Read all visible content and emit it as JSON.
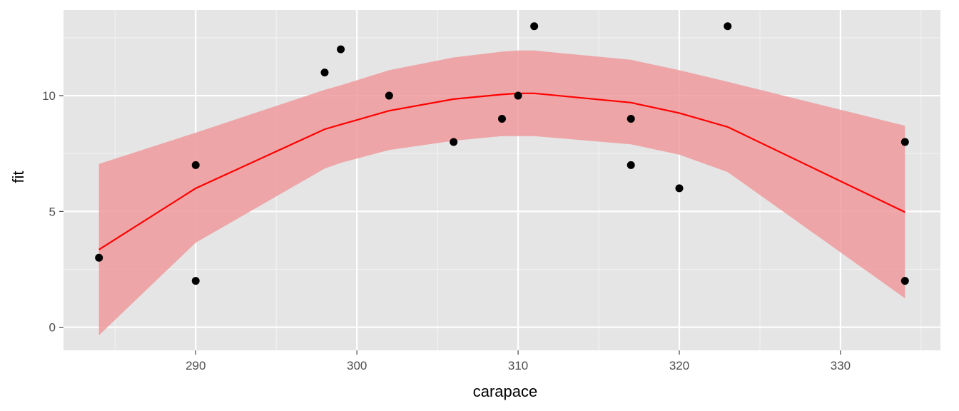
{
  "chart_data": {
    "type": "scatter",
    "xlabel": "carapace",
    "ylabel": "fit",
    "xlim": [
      281.8,
      336.2
    ],
    "ylim": [
      -1,
      13.7
    ],
    "x_ticks": [
      290,
      300,
      310,
      320,
      330
    ],
    "y_ticks": [
      0,
      5,
      10
    ],
    "grid": true,
    "colors": {
      "panel_background": "#e5e5e5",
      "grid": "#ffffff",
      "points": "#000000",
      "fit_line": "#ff0000",
      "ribbon": "#ee9a9c"
    },
    "points": [
      {
        "x": 284,
        "y": 3
      },
      {
        "x": 290,
        "y": 7
      },
      {
        "x": 290,
        "y": 2
      },
      {
        "x": 298,
        "y": 11
      },
      {
        "x": 299,
        "y": 12
      },
      {
        "x": 302,
        "y": 10
      },
      {
        "x": 306,
        "y": 8
      },
      {
        "x": 309,
        "y": 9
      },
      {
        "x": 310,
        "y": 10
      },
      {
        "x": 311,
        "y": 13
      },
      {
        "x": 317,
        "y": 9
      },
      {
        "x": 317,
        "y": 7
      },
      {
        "x": 320,
        "y": 6
      },
      {
        "x": 323,
        "y": 13
      },
      {
        "x": 334,
        "y": 8
      },
      {
        "x": 334,
        "y": 2
      }
    ],
    "fit": {
      "x": [
        284,
        290,
        298,
        299,
        302,
        306,
        309,
        310,
        311,
        317,
        320,
        323,
        334
      ],
      "y": [
        3.35,
        6.0,
        8.55,
        8.75,
        9.35,
        9.85,
        10.05,
        10.1,
        10.1,
        9.7,
        9.25,
        8.65,
        4.97
      ],
      "lower": [
        -0.35,
        3.65,
        6.85,
        7.1,
        7.65,
        8.05,
        8.25,
        8.25,
        8.25,
        7.9,
        7.45,
        6.7,
        1.25
      ],
      "upper": [
        7.05,
        8.4,
        10.25,
        10.45,
        11.1,
        11.65,
        11.9,
        11.95,
        11.95,
        11.55,
        11.1,
        10.6,
        8.7
      ]
    }
  }
}
